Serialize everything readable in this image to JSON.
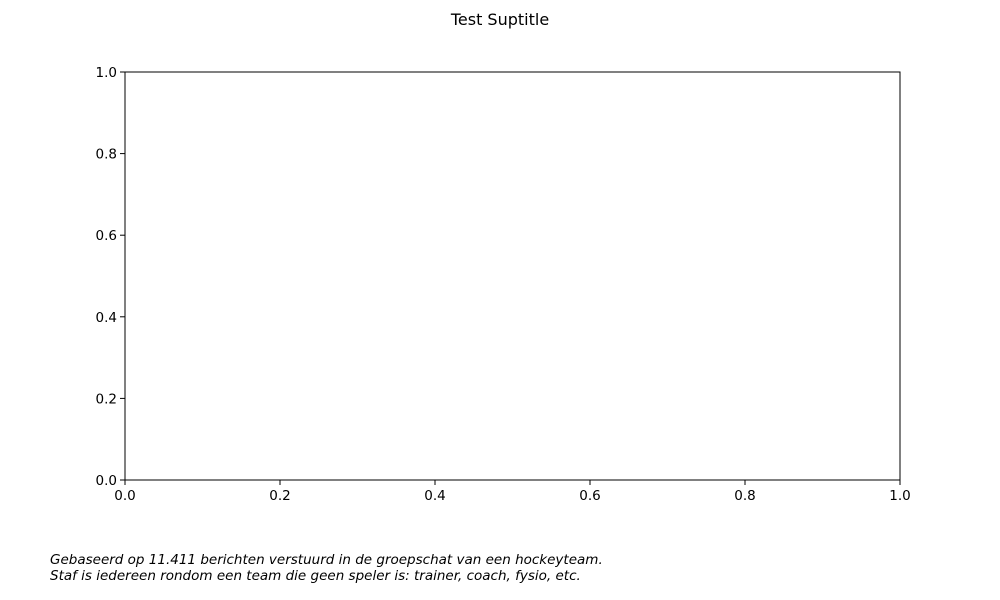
{
  "chart_data": {
    "type": "line",
    "title": "Test Suptitle",
    "xlabel": "",
    "ylabel": "",
    "xlim": [
      0.0,
      1.0
    ],
    "ylim": [
      0.0,
      1.0
    ],
    "xticks": [
      "0.0",
      "0.2",
      "0.4",
      "0.6",
      "0.8",
      "1.0"
    ],
    "yticks": [
      "0.0",
      "0.2",
      "0.4",
      "0.6",
      "0.8",
      "1.0"
    ],
    "series": [],
    "grid": false
  },
  "footnote": {
    "line1": "Gebaseerd op 11.411 berichten verstuurd in de groepschat van een hockeyteam.",
    "line2": "Staf is iedereen rondom een team die geen speler is: trainer, coach, fysio, etc."
  },
  "colors": {
    "axes": "#000000",
    "background": "#ffffff"
  }
}
